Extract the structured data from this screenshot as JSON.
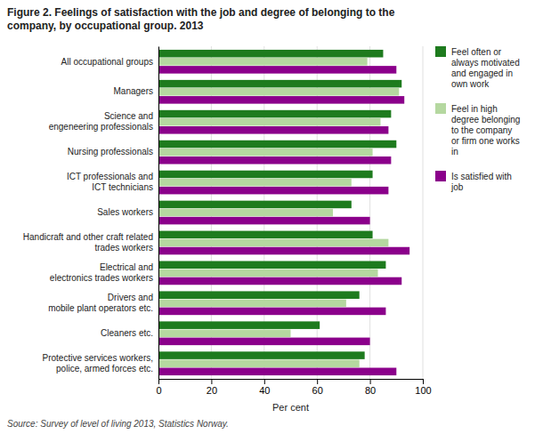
{
  "chart_data": {
    "type": "bar",
    "orientation": "horizontal",
    "title": "Figure 2. Feelings of satisfaction with the job and degree of belonging to the\ncompany, by occupational group. 2013",
    "categories": [
      "Protective services workers,\npolice, armed forces etc.",
      "Cleaners etc.",
      "Drivers and\nmobile plant operators etc.",
      "Electrical and\nelectronics trades workers",
      "Handicraft and other craft related\ntrades workers",
      "Sales workers",
      "ICT professionals and\nICT technicians",
      "Nursing professionals",
      "Science and\nengeneering professionals",
      "Managers",
      "All occupational groups"
    ],
    "series": [
      {
        "name": "Feel often or\nalways motivated\nand engaged in\nown work",
        "color": "#1e7b1e",
        "values": [
          78,
          61,
          76,
          86,
          81,
          73,
          81,
          90,
          88,
          92,
          85
        ]
      },
      {
        "name": "Feel in high\ndegree belonging\nto the company\nor firm one works\nin",
        "color": "#b5d8a0",
        "values": [
          76,
          50,
          71,
          83,
          87,
          66,
          73,
          81,
          84,
          91,
          79
        ]
      },
      {
        "name": "Is satisfied with\njob",
        "color": "#8b008b",
        "values": [
          90,
          80,
          86,
          92,
          95,
          80,
          87,
          88,
          87,
          93,
          90
        ]
      }
    ],
    "xlabel": "Per cent",
    "xlim": [
      0,
      100
    ],
    "xticks": [
      0,
      20,
      40,
      60,
      80,
      100
    ],
    "grid": true,
    "legend": "right",
    "source": "Source: Survey of level of living 2013, Statistics Norway."
  }
}
